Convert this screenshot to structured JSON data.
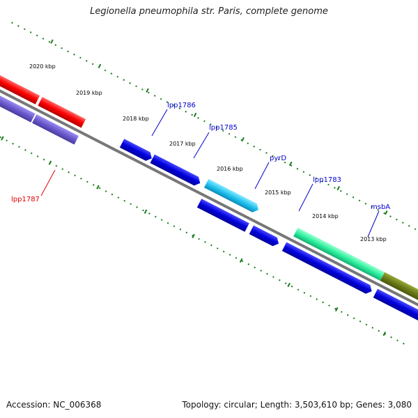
{
  "title": "Legionella pneumophila str. Paris, complete genome",
  "accession": "Accession: NC_006368",
  "stats": "Topology: circular; Length: 3,503,610 bp; Genes: 3,080",
  "colors": {
    "backbone": "#777777",
    "ticks": "#1a7a1a",
    "label_blue": "#0000cc",
    "label_red": "#e00000",
    "cds_blue": "#0000dd",
    "cds_red": "#ff0000",
    "cds_purple": "#6a5acd",
    "cds_cyan": "#22c4f0",
    "cds_green": "#2ef0a0",
    "cds_olive": "#6b7a18"
  },
  "kbp_labels": [
    "2020 kbp",
    "2019 kbp",
    "2018 kbp",
    "2017 kbp",
    "2016 kbp",
    "2015 kbp",
    "2014 kbp",
    "2013 kbp"
  ],
  "gene_labels": {
    "lpp1786": "lpp1786",
    "lpp1785": "lpp1785",
    "pyrD": "pyrD",
    "lpp1783": "lpp1783",
    "msbA": "msbA",
    "lpp1787": "lpp1787"
  }
}
